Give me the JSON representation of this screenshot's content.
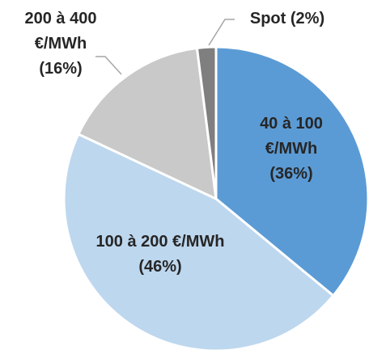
{
  "chart_data": {
    "type": "pie",
    "categories": [
      "40 à 100 €/MWh",
      "100 à 200 €/MWh",
      "200 à 400 €/MWh",
      "Spot"
    ],
    "values": [
      36,
      46,
      16,
      2
    ],
    "value_labels": [
      "(36%)",
      "(46%)",
      "(16%)",
      "(2%)"
    ],
    "colors": [
      "#5b9bd5",
      "#bdd7ee",
      "#c9c9c9",
      "#7f7f7f"
    ]
  }
}
